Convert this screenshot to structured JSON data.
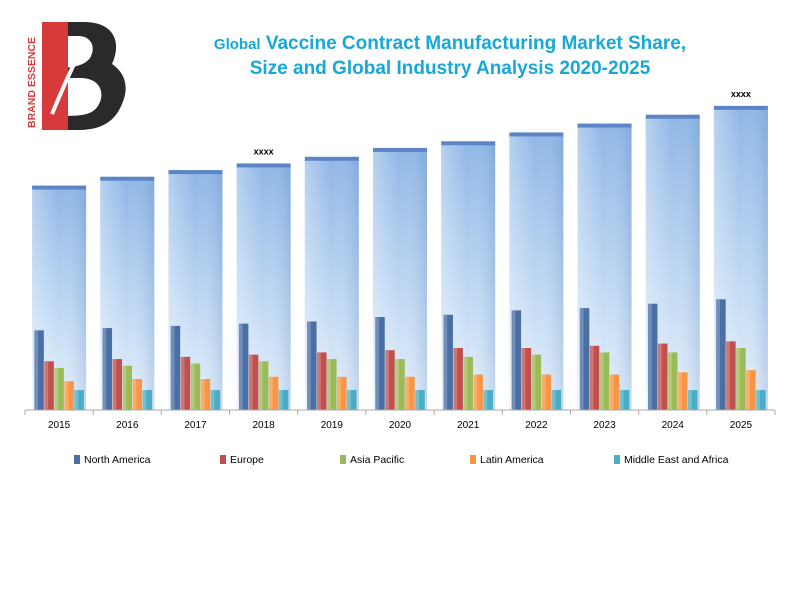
{
  "logo": {
    "text": "BRAND ESSENCE",
    "letter": "B"
  },
  "title": {
    "line1_prefix": "Global",
    "line1_rest": "Vaccine Contract Manufacturing  Market Share,",
    "line2": "Size and Global Industry Analysis 2020-2025"
  },
  "colors": {
    "title": "#17a8d6",
    "total_bar": "#9dc3eb",
    "north_america": "#4a6fa5",
    "europe": "#c0504d",
    "asia_pacific": "#9bbb59",
    "latin_america": "#f79646",
    "middle_east_africa": "#4bacc6"
  },
  "chart_data": {
    "type": "bar",
    "categories": [
      "2015",
      "2016",
      "2017",
      "2018",
      "2019",
      "2020",
      "2021",
      "2022",
      "2023",
      "2024",
      "2025"
    ],
    "total": [
      100,
      104,
      107,
      110,
      113,
      117,
      120,
      124,
      128,
      132,
      136
    ],
    "series": [
      {
        "name": "North America",
        "values": [
          36,
          37,
          38,
          39,
          40,
          42,
          43,
          45,
          46,
          48,
          50
        ]
      },
      {
        "name": "Europe",
        "values": [
          22,
          23,
          24,
          25,
          26,
          27,
          28,
          28,
          29,
          30,
          31
        ]
      },
      {
        "name": "Asia Pacific",
        "values": [
          19,
          20,
          21,
          22,
          23,
          23,
          24,
          25,
          26,
          26,
          28
        ]
      },
      {
        "name": "Latin America",
        "values": [
          13,
          14,
          14,
          15,
          15,
          15,
          16,
          16,
          16,
          17,
          18
        ]
      },
      {
        "name": "Middle East and Africa",
        "values": [
          9,
          9,
          9,
          9,
          9,
          9,
          9,
          9,
          9,
          9,
          9
        ]
      }
    ],
    "annotations": [
      {
        "category": "2018",
        "text": "xxxx"
      },
      {
        "category": "2025",
        "text": "xxxx"
      }
    ],
    "ylim": [
      0,
      140
    ],
    "legend": "bottom",
    "grid": false
  }
}
